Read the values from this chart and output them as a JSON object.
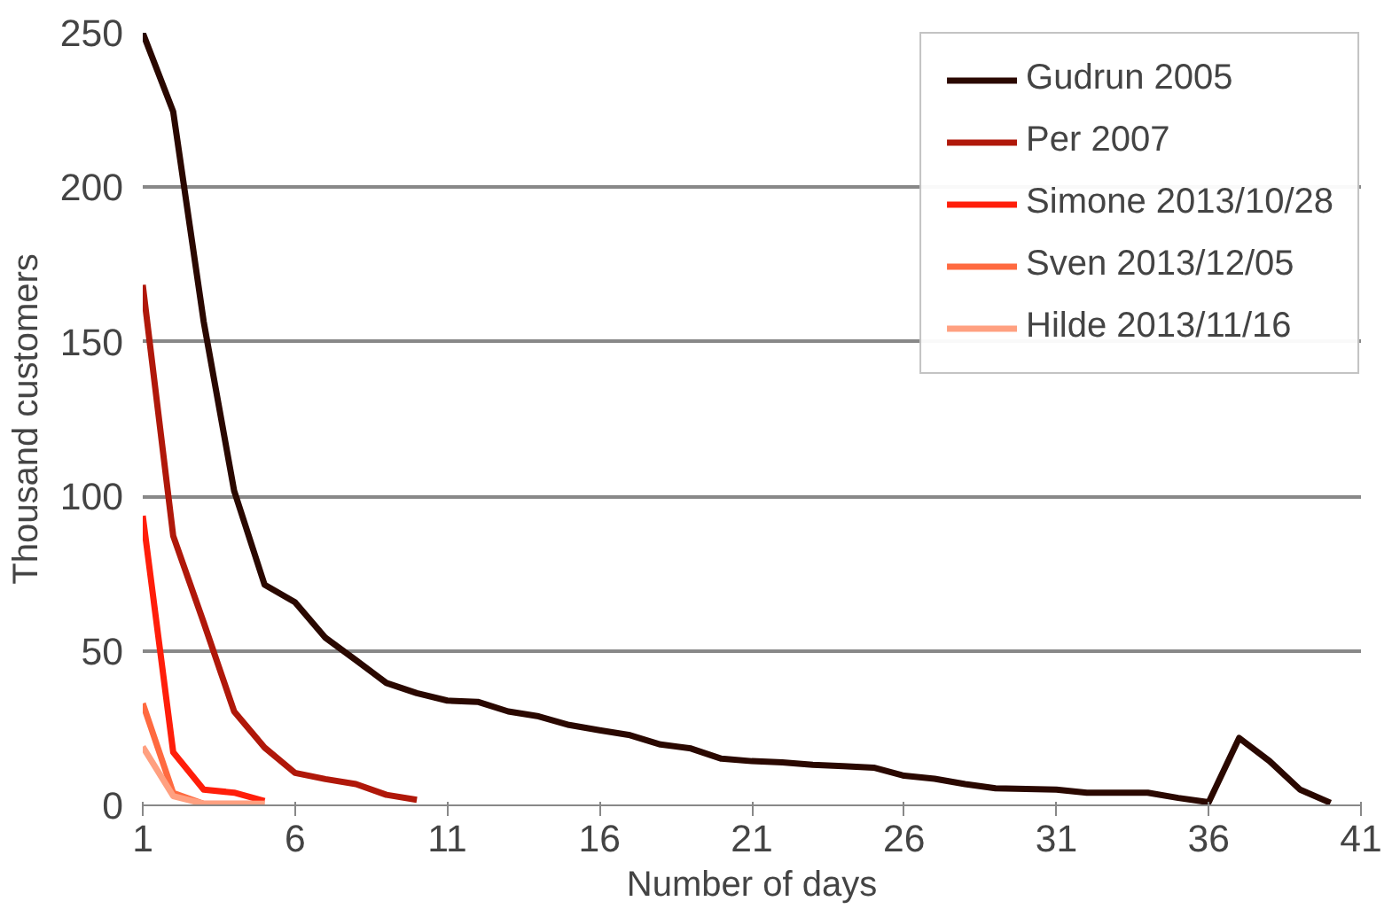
{
  "chart_data": {
    "type": "line",
    "xlabel": "Number of days",
    "ylabel": "Thousand customers",
    "xlim": [
      1,
      41
    ],
    "ylim": [
      0,
      250
    ],
    "xticks": [
      1,
      6,
      11,
      16,
      21,
      26,
      31,
      36,
      41
    ],
    "yticks": [
      0,
      50,
      100,
      150,
      200,
      250
    ],
    "grid": "y",
    "legend": "top right",
    "marker": "none",
    "line_style": "solid",
    "series": [
      {
        "name": "Gudrun 2005",
        "color": "#2a0800",
        "x": [
          1,
          2,
          3,
          4,
          5,
          6,
          7,
          8,
          9,
          10,
          11,
          12,
          13,
          14,
          15,
          16,
          17,
          18,
          19,
          20,
          21,
          22,
          23,
          24,
          25,
          26,
          27,
          28,
          29,
          30,
          31,
          32,
          33,
          34,
          35,
          36,
          37,
          38,
          39,
          40
        ],
        "values": [
          250,
          224.5,
          156.6,
          101.8,
          71.4,
          65.7,
          54.2,
          47,
          39.6,
          36.3,
          33.9,
          33.5,
          30.4,
          28.8,
          26,
          24.3,
          22.7,
          19.7,
          18.4,
          15.1,
          14.3,
          13.9,
          13.1,
          12.7,
          12.2,
          9.6,
          8.6,
          6.9,
          5.5,
          5.3,
          5.1,
          4.1,
          4.1,
          4.1,
          2.4,
          1,
          21.8,
          14.3,
          5.1,
          0.8
        ]
      },
      {
        "name": "Per 2007",
        "color": "#b0180a",
        "x": [
          1,
          2,
          3,
          4,
          5,
          6,
          7,
          8,
          9,
          10
        ],
        "values": [
          168.4,
          87.2,
          59.2,
          30.4,
          18.7,
          10.5,
          8.5,
          6.9,
          3.4,
          1.8
        ]
      },
      {
        "name": "Simone 2013/10/28",
        "color": "#ff1e0a",
        "x": [
          1,
          2,
          3,
          4,
          5
        ],
        "values": [
          93.7,
          17.2,
          5.1,
          4.1,
          1.4
        ]
      },
      {
        "name": "Sven 2013/12/05",
        "color": "#ff6a40",
        "x": [
          1,
          2,
          3,
          4,
          5
        ],
        "values": [
          33,
          4,
          0.5,
          0.5,
          0.5
        ]
      },
      {
        "name": "Hilde 2013/11/16",
        "color": "#ffa080",
        "x": [
          1,
          2,
          3,
          4,
          5
        ],
        "values": [
          19,
          3,
          0.5,
          0.5,
          0.5
        ]
      }
    ]
  }
}
